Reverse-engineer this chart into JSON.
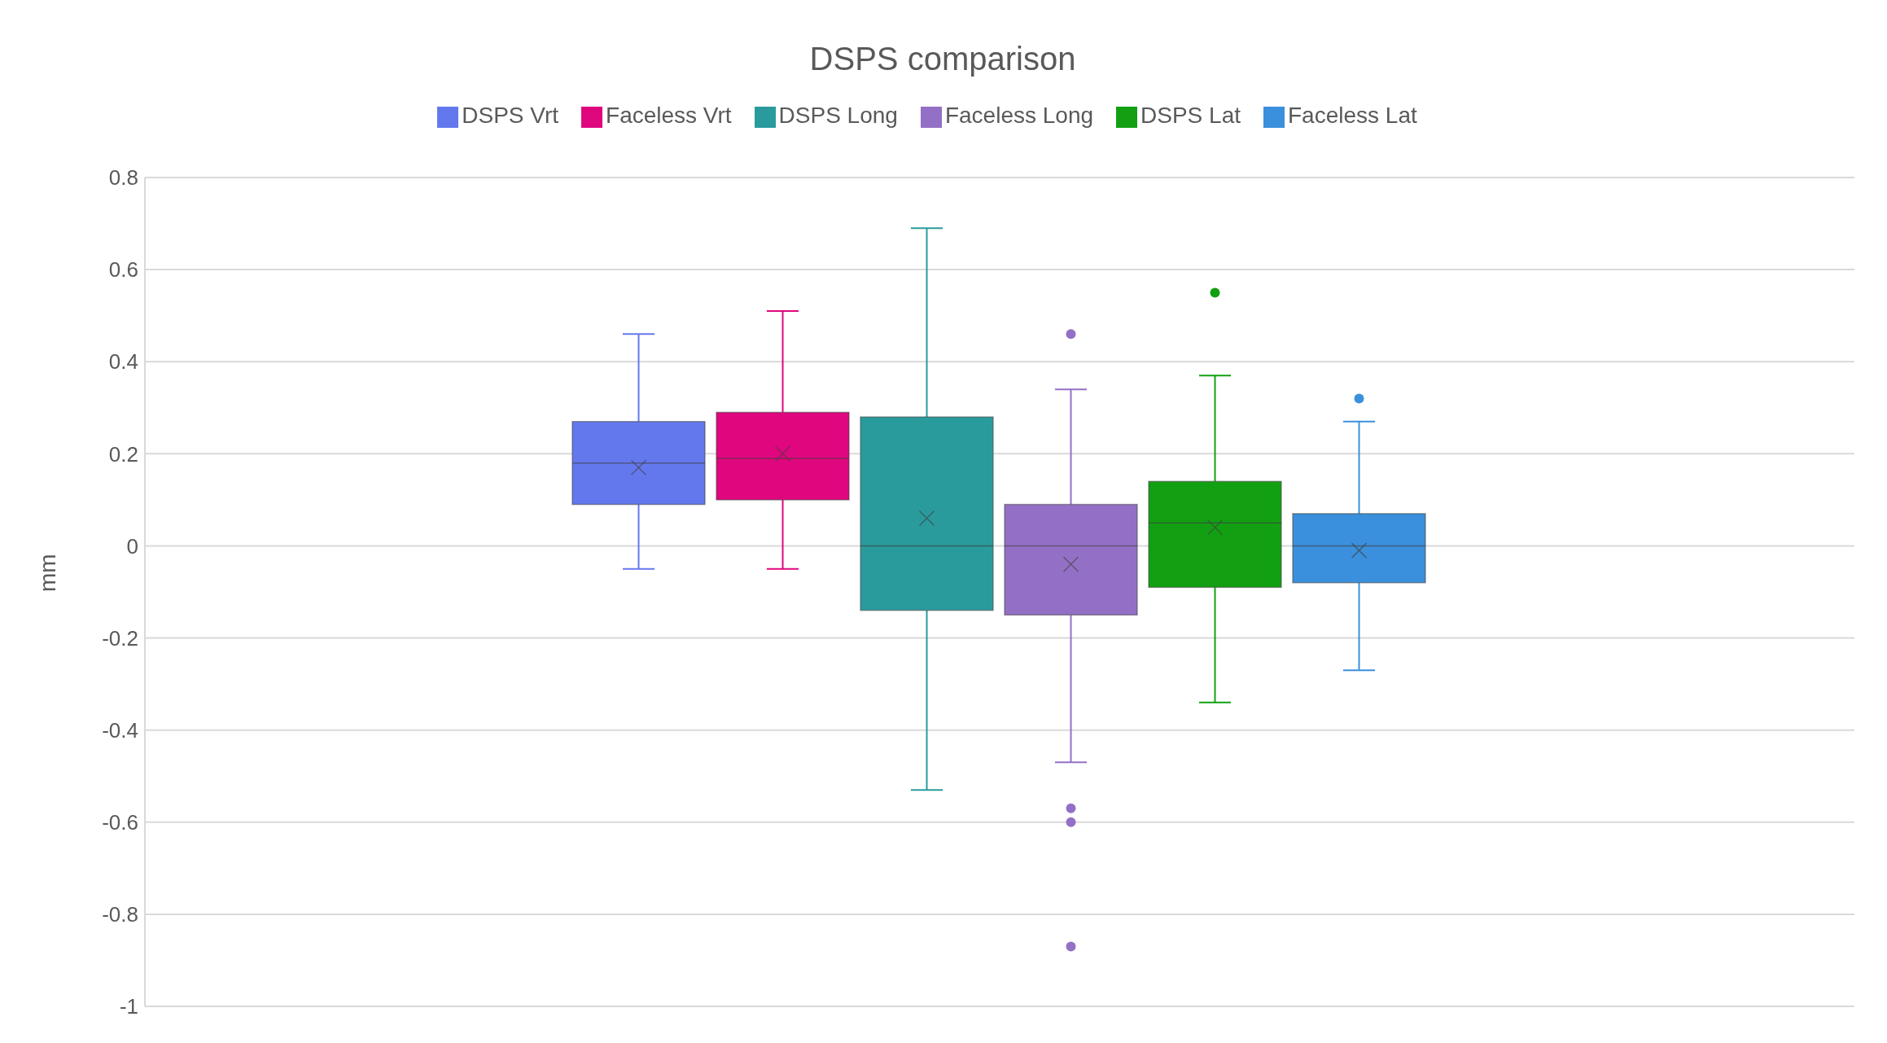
{
  "chart_data": {
    "type": "box",
    "title": "DSPS comparison",
    "ylabel": "mm",
    "categories": [
      null
    ],
    "series": [
      {
        "name": "DSPS Vrt",
        "color": "#6478ee",
        "boxes": [
          {
            "low": -0.05,
            "q1": 0.09,
            "median": 0.18,
            "q3": 0.27,
            "high": 0.46,
            "mean": 0.17
          }
        ]
      },
      {
        "name": "Faceless Vrt",
        "color": "#e0067e",
        "boxes": [
          {
            "low": -0.05,
            "q1": 0.1,
            "median": 0.19,
            "q3": 0.29,
            "high": 0.51,
            "mean": 0.2
          }
        ]
      },
      {
        "name": "DSPS Long",
        "color": "#2a9b9d",
        "boxes": [
          {
            "low": -0.53,
            "q1": -0.14,
            "median": 0,
            "q3": 0.28,
            "high": 0.69,
            "mean": 0.06
          }
        ]
      },
      {
        "name": "Faceless Long",
        "color": "#9370c6",
        "boxes": [
          {
            "low": -0.47,
            "q1": -0.15,
            "median": 0,
            "q3": 0.09,
            "high": 0.34,
            "mean": -0.04,
            "outliers": [
              0.46,
              -0.57,
              -0.6,
              -0.87
            ]
          }
        ]
      },
      {
        "name": "DSPS Lat",
        "color": "#12a012",
        "boxes": [
          {
            "low": -0.34,
            "q1": -0.09,
            "median": 0.05,
            "q3": 0.14,
            "high": 0.37,
            "mean": 0.04,
            "outliers": [
              0.55
            ]
          }
        ]
      },
      {
        "name": "Faceless Lat",
        "color": "#3a90dc",
        "boxes": [
          {
            "low": -0.27,
            "q1": -0.08,
            "median": 0,
            "q3": 0.07,
            "high": 0.27,
            "mean": -0.01,
            "outliers": [
              0.32
            ]
          }
        ]
      }
    ],
    "ylim": [
      -1,
      0.8
    ],
    "yticks": [
      -1,
      -0.8,
      -0.6,
      -0.4,
      -0.2,
      0,
      0.2,
      0.4,
      0.6,
      0.8
    ],
    "grid": "y",
    "legend": "top",
    "tick_labels": "y"
  }
}
